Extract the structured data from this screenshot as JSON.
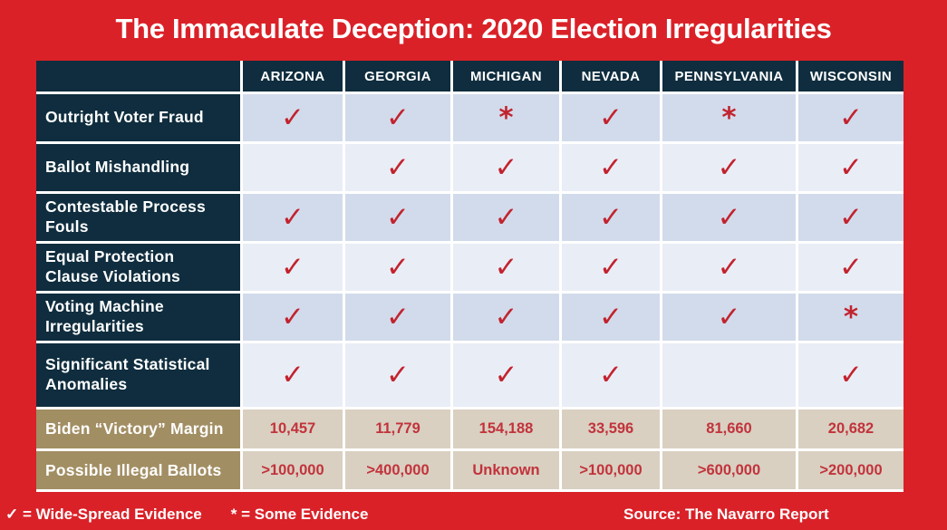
{
  "chart_data": {
    "type": "table",
    "title": "The Immaculate Deception: 2020 Election Irregularities",
    "columns": [
      "ARIZONA",
      "GEORGIA",
      "MICHIGAN",
      "NEVADA",
      "PENNSYLVANIA",
      "WISCONSIN"
    ],
    "rows": [
      {
        "label": "Outright Voter Fraud",
        "values": [
          "✓",
          "✓",
          "*",
          "✓",
          "*",
          "✓"
        ]
      },
      {
        "label": "Ballot Mishandling",
        "values": [
          "",
          "✓",
          "✓",
          "✓",
          "✓",
          "✓"
        ]
      },
      {
        "label": "Contestable Process Fouls",
        "values": [
          "✓",
          "✓",
          "✓",
          "✓",
          "✓",
          "✓"
        ]
      },
      {
        "label": "Equal Protection Clause Violations",
        "values": [
          "✓",
          "✓",
          "✓",
          "✓",
          "✓",
          "✓"
        ]
      },
      {
        "label": "Voting Machine Irregularities",
        "values": [
          "✓",
          "✓",
          "✓",
          "✓",
          "✓",
          "*"
        ]
      },
      {
        "label": "Significant Statistical Anomalies",
        "values": [
          "✓",
          "✓",
          "✓",
          "✓",
          "",
          "✓"
        ]
      },
      {
        "label": "Biden “Victory” Margin",
        "values": [
          "10,457",
          "11,779",
          "154,188",
          "33,596",
          "81,660",
          "20,682"
        ]
      },
      {
        "label": "Possible Illegal Ballots",
        "values": [
          ">100,000",
          ">400,000",
          "Unknown",
          ">100,000",
          ">600,000",
          ">200,000"
        ]
      }
    ],
    "legend": {
      "check_meaning": "Wide-Spread Evidence",
      "star_meaning": "Some Evidence"
    }
  },
  "footer": {
    "legend_check": "✓ = Wide-Spread Evidence",
    "legend_star": "* = Some Evidence",
    "source": "Source: The Navarro Report"
  },
  "colors": {
    "background_red": "#da2128",
    "header_navy": "#0f2d3e",
    "row_shaded": "#d2dbeb",
    "row_light": "#e9edf6",
    "stat_label_tan": "#a28e63",
    "stat_cell_tan": "#d9d0c1",
    "mark_red": "#c2232e",
    "text_white": "#ffffff"
  }
}
